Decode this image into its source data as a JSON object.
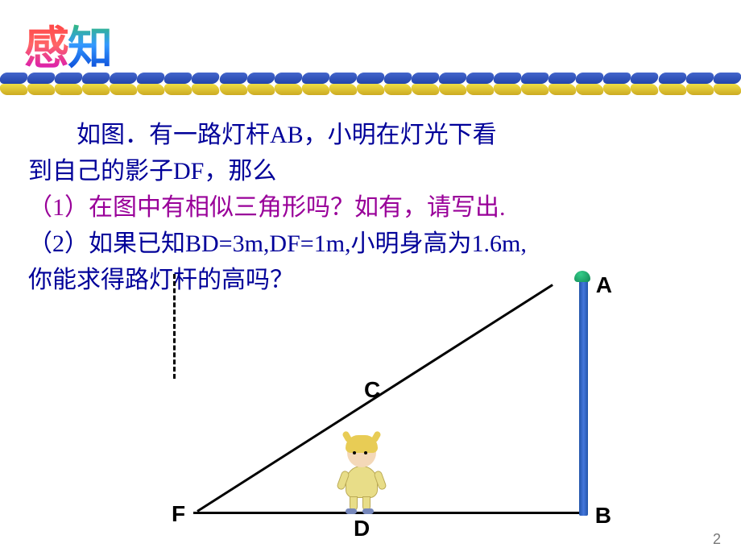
{
  "title": {
    "char1": "感",
    "char2": "知",
    "char1_gradient": [
      "#ff3333",
      "#cc00cc"
    ],
    "char2_gradient": [
      "#33cc33",
      "#0033cc"
    ],
    "fontsize": 56
  },
  "divider": {
    "colors_row1": "#3355bb",
    "colors_row2": "#ddcc33",
    "link_count": 27
  },
  "body": {
    "color": "#000099",
    "fontsize": 30,
    "line1": "如图．有一路灯杆AB，小明在灯光下看",
    "line2": "到自己的影子DF，那么",
    "q1": "（1）在图中有相似三角形吗？如有，请写出.",
    "q2_a": "（2）如果已知BD=3m,DF=1m,小明身高为1.6m,",
    "q2_b": "你能求得路灯杆的高吗？",
    "q1_color": "#990099"
  },
  "diagram": {
    "labels": {
      "A": "A",
      "B": "B",
      "C": "C",
      "D": "D",
      "F": "F"
    },
    "label_fontsize": 28,
    "line_color": "#000000",
    "line_width": 3,
    "pole_color": "#2255aa",
    "lamp_color": "#22aa77",
    "kid": {
      "shirt_color": "#e8dd88",
      "hair_color": "#e8cc55",
      "skin_color": "#f4d8b8",
      "shoe_color": "#7788bb"
    },
    "values": {
      "BD": 3,
      "DF": 1,
      "height_person": 1.6
    }
  },
  "page_number": "2"
}
